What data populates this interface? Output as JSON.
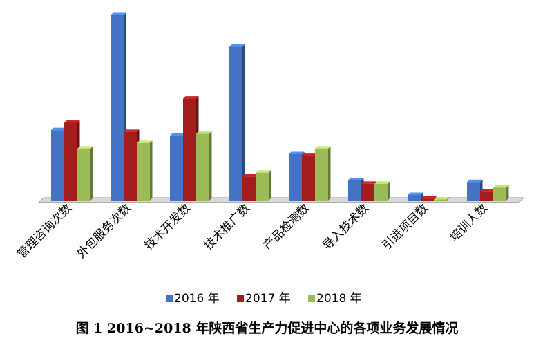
{
  "caption": "图 1   2016~2018 年陕西省生产力促进中心的各项业务发展情况",
  "chart_data": {
    "type": "bar",
    "title": "",
    "xlabel": "",
    "ylabel": "",
    "ylim": [
      0,
      100
    ],
    "grid": false,
    "legend_position": "bottom",
    "categories": [
      "管理咨询次数",
      "外包服务次数",
      "技术开发数",
      "技术推广数",
      "产品检测数",
      "导入技术数",
      "引进项目数",
      "培训人数"
    ],
    "series": [
      {
        "name": "2016 年",
        "color": "#4472C4",
        "values": [
          38,
          100,
          35,
          83,
          25,
          11,
          3,
          10
        ]
      },
      {
        "name": "2017 年",
        "color": "#A31D1D",
        "values": [
          42,
          37,
          55,
          13,
          24,
          9,
          1,
          5
        ]
      },
      {
        "name": "2018 年",
        "color": "#9BBB59",
        "values": [
          28,
          31,
          36,
          15,
          28,
          9,
          0.5,
          7
        ]
      }
    ]
  }
}
